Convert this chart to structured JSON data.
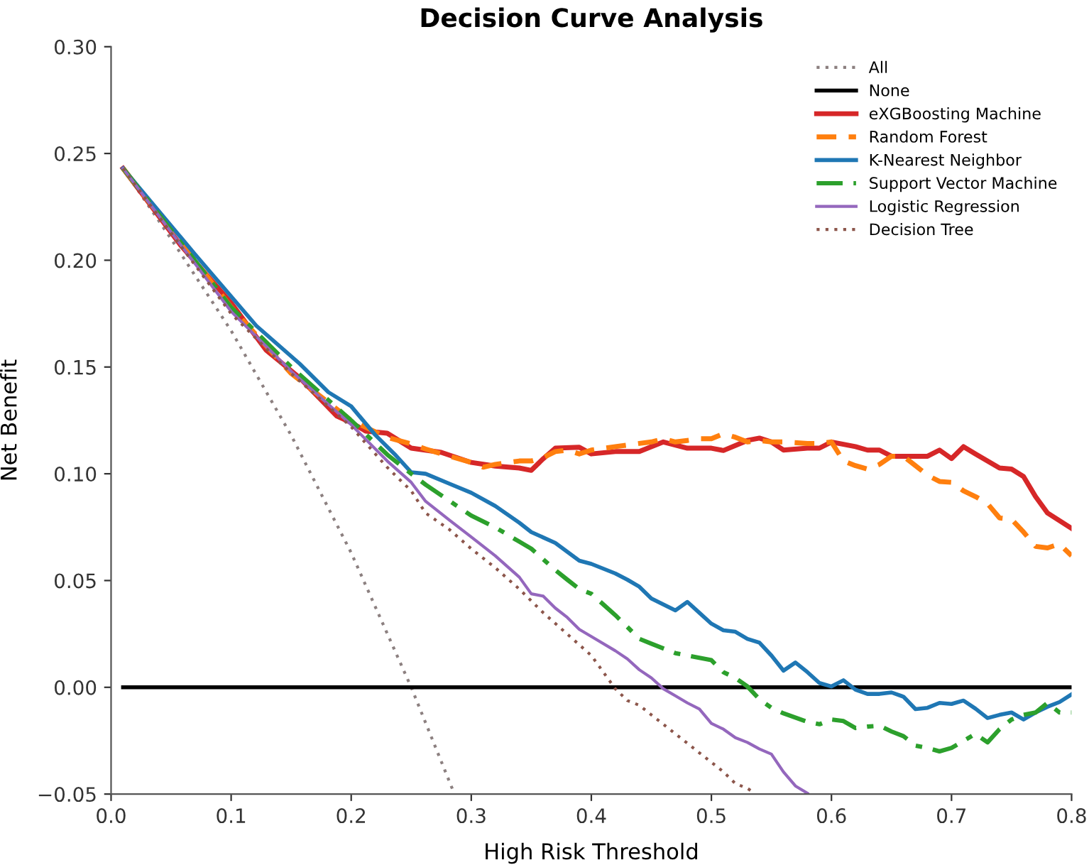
{
  "chart_data": {
    "type": "line",
    "title": "Decision Curve Analysis",
    "xlabel": "High Risk Threshold",
    "ylabel": "Net Benefit",
    "xlim": [
      0.0,
      0.8
    ],
    "ylim": [
      -0.05,
      0.3
    ],
    "xticks": [
      {
        "value": 0.0,
        "label": "0.0"
      },
      0.1,
      0.2,
      0.3,
      0.4,
      0.5,
      0.6,
      0.7,
      0.8
    ],
    "yticks": [
      {
        "value": -0.05,
        "label": "−0.05"
      },
      {
        "value": 0.0,
        "label": "0.00"
      },
      {
        "value": 0.05,
        "label": "0.05"
      },
      {
        "value": 0.1,
        "label": "0.10"
      },
      {
        "value": 0.15,
        "label": "0.15"
      },
      {
        "value": 0.2,
        "label": "0.20"
      },
      {
        "value": 0.25,
        "label": "0.25"
      },
      {
        "value": 0.3,
        "label": "0.30"
      }
    ],
    "grid": false,
    "legend": "top right",
    "marker": "none",
    "series": [
      {
        "name": "All",
        "color": "#8c8080",
        "line_style": "dotted",
        "x": [
          0.01,
          0.05,
          0.1,
          0.15,
          0.2,
          0.25,
          0.286
        ],
        "values": [
          0.243,
          0.21,
          0.167,
          0.118,
          0.063,
          0.0,
          -0.05
        ]
      },
      {
        "name": "None",
        "color": "#000000",
        "line_style": "solid",
        "x": [
          0.01,
          0.8
        ],
        "values": [
          0.0,
          0.0
        ]
      },
      {
        "name": "eXGBoosting Machine",
        "color": "#d62728",
        "line_style": "solid",
        "x": [
          0.01,
          0.058,
          0.1,
          0.129,
          0.157,
          0.188,
          0.2,
          0.212,
          0.23,
          0.25,
          0.275,
          0.3,
          0.32,
          0.34,
          0.35,
          0.36,
          0.37,
          0.39,
          0.4,
          0.42,
          0.44,
          0.46,
          0.48,
          0.5,
          0.51,
          0.53,
          0.54,
          0.55,
          0.56,
          0.58,
          0.59,
          0.6,
          0.62,
          0.63,
          0.64,
          0.65,
          0.68,
          0.69,
          0.7,
          0.71,
          0.72,
          0.74,
          0.75,
          0.76,
          0.77,
          0.78,
          0.8
        ],
        "values": [
          0.243,
          0.207,
          0.18,
          0.158,
          0.145,
          0.127,
          0.124,
          0.12,
          0.119,
          0.112,
          0.11,
          0.1053,
          0.1036,
          0.1027,
          0.1016,
          0.1071,
          0.112,
          0.1124,
          0.1093,
          0.1104,
          0.1104,
          0.1149,
          0.112,
          0.112,
          0.1109,
          0.1156,
          0.1167,
          0.1149,
          0.1111,
          0.112,
          0.112,
          0.1149,
          0.1127,
          0.1111,
          0.1111,
          0.1082,
          0.1082,
          0.1111,
          0.1071,
          0.1127,
          0.1093,
          0.1027,
          0.1022,
          0.0987,
          0.0893,
          0.0816,
          0.0744
        ]
      },
      {
        "name": "Random Forest",
        "color": "#ff7f0e",
        "line_style": "dashed",
        "x": [
          0.01,
          0.1,
          0.15,
          0.2,
          0.23,
          0.25,
          0.262,
          0.282,
          0.3,
          0.31,
          0.32,
          0.34,
          0.35,
          0.36,
          0.37,
          0.38,
          0.39,
          0.4,
          0.42,
          0.44,
          0.45,
          0.46,
          0.47,
          0.48,
          0.49,
          0.5,
          0.51,
          0.52,
          0.53,
          0.54,
          0.55,
          0.56,
          0.58,
          0.59,
          0.6,
          0.61,
          0.62,
          0.63,
          0.64,
          0.65,
          0.66,
          0.67,
          0.68,
          0.69,
          0.7,
          0.71,
          0.72,
          0.73,
          0.74,
          0.75,
          0.76,
          0.77,
          0.78,
          0.79,
          0.8
        ],
        "values": [
          0.243,
          0.178,
          0.147,
          0.125,
          0.117,
          0.114,
          0.1116,
          0.1082,
          0.1053,
          0.1031,
          0.1044,
          0.106,
          0.106,
          0.1076,
          0.1104,
          0.1111,
          0.1093,
          0.1111,
          0.1127,
          0.1142,
          0.1149,
          0.1164,
          0.1149,
          0.1156,
          0.1164,
          0.1164,
          0.1187,
          0.1171,
          0.1149,
          0.1156,
          0.1149,
          0.1149,
          0.1142,
          0.1142,
          0.1149,
          0.106,
          0.1038,
          0.1022,
          0.1044,
          0.1082,
          0.1082,
          0.1038,
          0.0993,
          0.0964,
          0.096,
          0.092,
          0.0893,
          0.086,
          0.0793,
          0.0787,
          0.0727,
          0.066,
          0.0653,
          0.0671,
          0.0616
        ]
      },
      {
        "name": "K-Nearest Neighbor",
        "color": "#1f77b4",
        "line_style": "solid",
        "x": [
          0.01,
          0.07,
          0.121,
          0.157,
          0.181,
          0.2,
          0.22,
          0.236,
          0.25,
          0.262,
          0.282,
          0.3,
          0.32,
          0.34,
          0.35,
          0.37,
          0.39,
          0.4,
          0.42,
          0.43,
          0.44,
          0.45,
          0.47,
          0.48,
          0.49,
          0.5,
          0.51,
          0.52,
          0.53,
          0.54,
          0.55,
          0.56,
          0.57,
          0.58,
          0.59,
          0.6,
          0.61,
          0.62,
          0.63,
          0.64,
          0.65,
          0.66,
          0.67,
          0.68,
          0.69,
          0.7,
          0.71,
          0.72,
          0.73,
          0.74,
          0.75,
          0.76,
          0.77,
          0.78,
          0.79,
          0.8
        ],
        "values": [
          0.243,
          0.2027,
          0.1693,
          0.1516,
          0.1382,
          0.1316,
          0.1182,
          0.1093,
          0.1007,
          0.1,
          0.0953,
          0.0911,
          0.0849,
          0.0771,
          0.0727,
          0.0676,
          0.0593,
          0.0578,
          0.0533,
          0.0504,
          0.0471,
          0.0416,
          0.036,
          0.04,
          0.0349,
          0.0298,
          0.0267,
          0.026,
          0.0227,
          0.0209,
          0.0149,
          0.0078,
          0.0116,
          0.0071,
          0.002,
          0.0004,
          0.0033,
          -0.0011,
          -0.0031,
          -0.0031,
          -0.0024,
          -0.0044,
          -0.0102,
          -0.0096,
          -0.0073,
          -0.0078,
          -0.0062,
          -0.01,
          -0.0144,
          -0.0129,
          -0.0118,
          -0.0151,
          -0.0118,
          -0.0091,
          -0.0069,
          -0.0033
        ]
      },
      {
        "name": "Support Vector Machine",
        "color": "#2ca02c",
        "line_style": "dashdot",
        "x": [
          0.01,
          0.1,
          0.15,
          0.2,
          0.23,
          0.25,
          0.262,
          0.3,
          0.32,
          0.34,
          0.35,
          0.37,
          0.38,
          0.39,
          0.4,
          0.42,
          0.44,
          0.45,
          0.47,
          0.48,
          0.5,
          0.51,
          0.52,
          0.53,
          0.54,
          0.55,
          0.56,
          0.58,
          0.59,
          0.6,
          0.61,
          0.62,
          0.63,
          0.64,
          0.65,
          0.66,
          0.67,
          0.68,
          0.69,
          0.7,
          0.71,
          0.72,
          0.73,
          0.74,
          0.75,
          0.76,
          0.77,
          0.78,
          0.79,
          0.8
        ],
        "values": [
          0.243,
          0.178,
          0.15,
          0.125,
          0.109,
          0.1,
          0.0949,
          0.0804,
          0.0749,
          0.0682,
          0.0649,
          0.0549,
          0.0504,
          0.046,
          0.0438,
          0.0338,
          0.0227,
          0.0204,
          0.016,
          0.0149,
          0.0127,
          0.0071,
          0.0044,
          0.0004,
          -0.0056,
          -0.0096,
          -0.0122,
          -0.0162,
          -0.0173,
          -0.0151,
          -0.0158,
          -0.0191,
          -0.0184,
          -0.018,
          -0.0207,
          -0.0229,
          -0.0273,
          -0.0284,
          -0.03,
          -0.0284,
          -0.0251,
          -0.0218,
          -0.0258,
          -0.0196,
          -0.0151,
          -0.0129,
          -0.0118,
          -0.0073,
          -0.0118,
          -0.0118
        ]
      },
      {
        "name": "Logistic Regression",
        "color": "#9467bd",
        "line_style": "solid",
        "x": [
          0.01,
          0.1,
          0.15,
          0.2,
          0.23,
          0.25,
          0.262,
          0.282,
          0.3,
          0.32,
          0.34,
          0.35,
          0.36,
          0.37,
          0.38,
          0.39,
          0.4,
          0.42,
          0.43,
          0.44,
          0.45,
          0.46,
          0.47,
          0.48,
          0.49,
          0.5,
          0.51,
          0.52,
          0.53,
          0.54,
          0.55,
          0.56,
          0.57,
          0.58
        ],
        "values": [
          0.243,
          0.176,
          0.148,
          0.123,
          0.106,
          0.096,
          0.0871,
          0.0782,
          0.0704,
          0.0616,
          0.0516,
          0.0438,
          0.0427,
          0.0371,
          0.0327,
          0.0271,
          0.0238,
          0.0171,
          0.0133,
          0.0082,
          0.0044,
          -0.0007,
          -0.004,
          -0.0073,
          -0.0102,
          -0.0169,
          -0.0196,
          -0.0236,
          -0.0258,
          -0.0289,
          -0.0313,
          -0.0396,
          -0.0462,
          -0.0496
        ]
      },
      {
        "name": "Decision Tree",
        "color": "#8c564b",
        "line_style": "dotted",
        "x": [
          0.01,
          0.1,
          0.15,
          0.2,
          0.23,
          0.25,
          0.262,
          0.282,
          0.3,
          0.32,
          0.34,
          0.36,
          0.38,
          0.4,
          0.42,
          0.43,
          0.44,
          0.45,
          0.46,
          0.47,
          0.48,
          0.49,
          0.5,
          0.51,
          0.52,
          0.53,
          0.536
        ],
        "values": [
          0.243,
          0.175,
          0.147,
          0.122,
          0.103,
          0.092,
          0.0816,
          0.0738,
          0.0649,
          0.056,
          0.046,
          0.0349,
          0.0249,
          0.0149,
          -0.0007,
          -0.0062,
          -0.0084,
          -0.0129,
          -0.0173,
          -0.0218,
          -0.0262,
          -0.0307,
          -0.0351,
          -0.0396,
          -0.0451,
          -0.0473,
          -0.0496
        ]
      }
    ]
  }
}
